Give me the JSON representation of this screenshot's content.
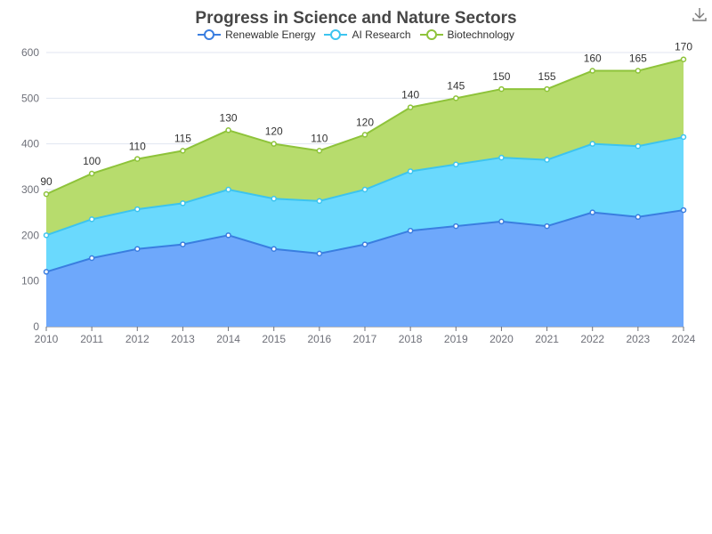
{
  "chart_data": {
    "type": "area",
    "stacked": true,
    "title": "Progress in Science and Nature Sectors",
    "xlabel": "",
    "ylabel": "",
    "x": [
      "2010",
      "2011",
      "2012",
      "2013",
      "2014",
      "2015",
      "2016",
      "2017",
      "2018",
      "2019",
      "2020",
      "2021",
      "2022",
      "2023",
      "2024"
    ],
    "ylim": [
      0,
      600
    ],
    "yticks": [
      0,
      100,
      200,
      300,
      400,
      500,
      600
    ],
    "grid": true,
    "legend_position": "top-center",
    "series": [
      {
        "name": "Renewable Energy",
        "color": "#3a7ee0",
        "fill": "#6ea8fb",
        "values": [
          120,
          150,
          170,
          180,
          200,
          170,
          160,
          180,
          210,
          220,
          230,
          220,
          250,
          240,
          255
        ]
      },
      {
        "name": "AI Research",
        "color": "#3cc4ef",
        "fill": "#6ad9fd",
        "values": [
          80,
          85,
          87,
          90,
          100,
          110,
          115,
          120,
          130,
          135,
          140,
          145,
          150,
          155,
          160
        ]
      },
      {
        "name": "Biotechnology",
        "color": "#8ec33a",
        "fill": "#b7dc6d",
        "values": [
          90,
          100,
          110,
          115,
          130,
          120,
          110,
          120,
          140,
          145,
          150,
          155,
          160,
          165,
          170
        ]
      }
    ],
    "data_labels_series": "Biotechnology"
  },
  "icons": {
    "download": "download-icon"
  }
}
